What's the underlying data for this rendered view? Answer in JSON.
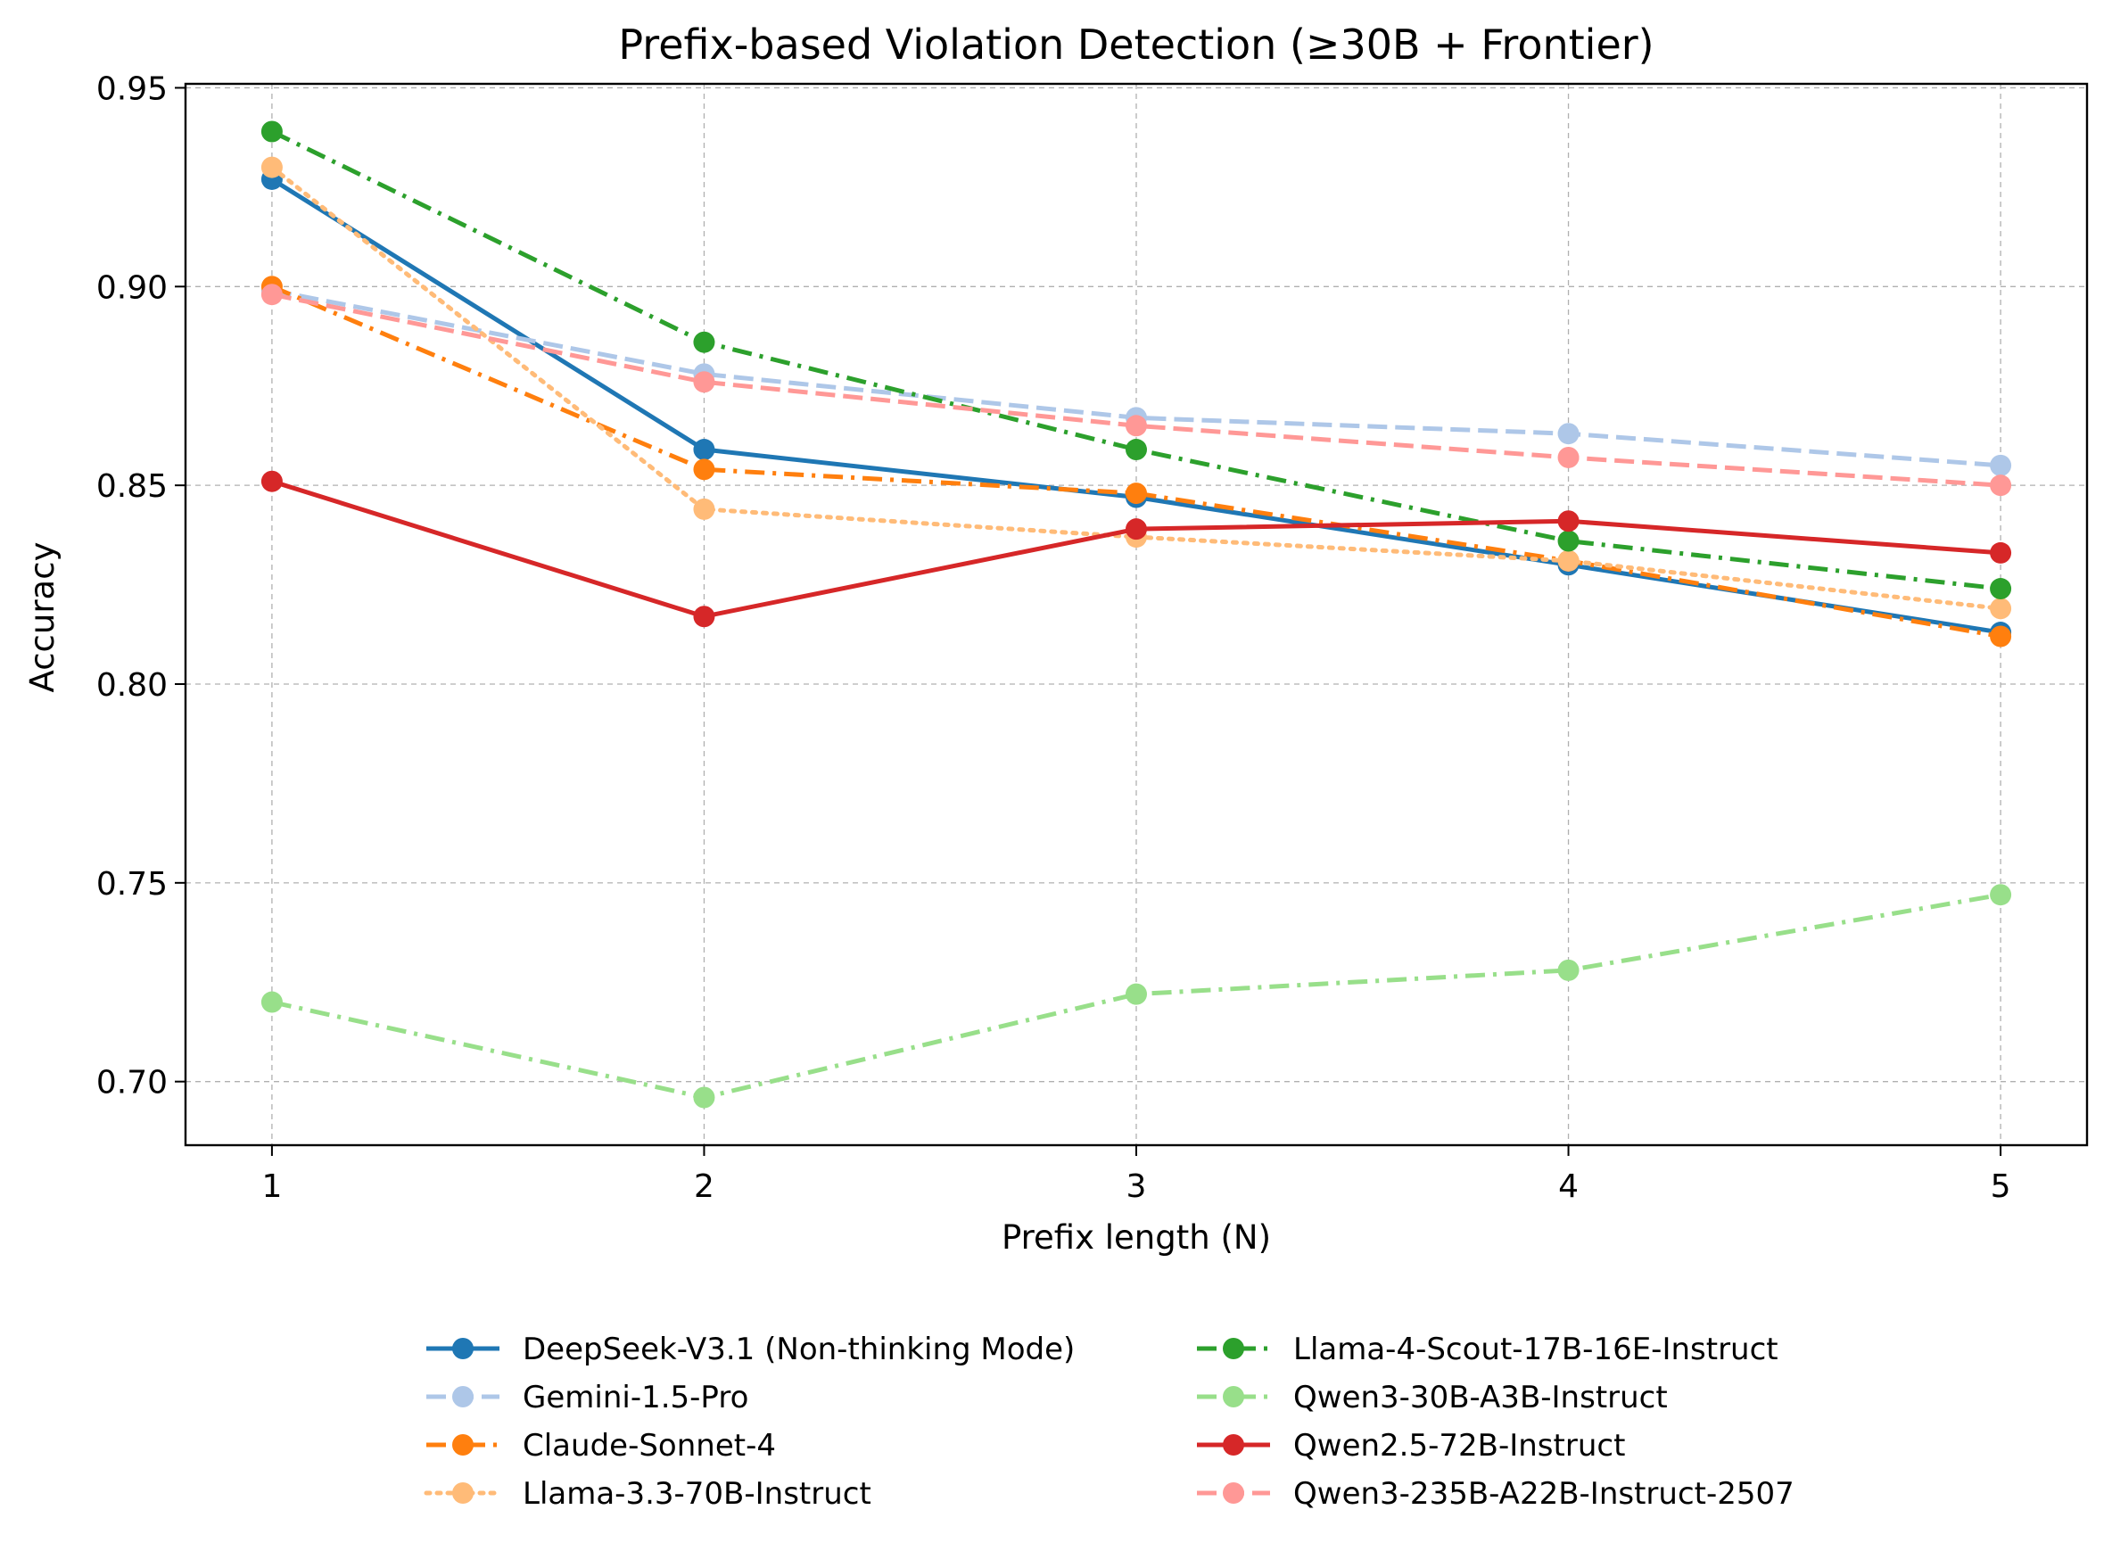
{
  "chart_data": {
    "type": "line",
    "title": "Prefix-based Violation Detection (≥30B + Frontier)",
    "xlabel": "Prefix length (N)",
    "ylabel": "Accuracy",
    "x": [
      1,
      2,
      3,
      4,
      5
    ],
    "x_tick_labels": [
      "1",
      "2",
      "3",
      "4",
      "5"
    ],
    "y_ticks": [
      0.7,
      0.75,
      0.8,
      0.85,
      0.9,
      0.95
    ],
    "y_tick_labels": [
      "0.70",
      "0.75",
      "0.80",
      "0.85",
      "0.90",
      "0.95"
    ],
    "xlim": [
      0.8,
      5.2
    ],
    "ylim": [
      0.684,
      0.951
    ],
    "grid": true,
    "legend_position": "below",
    "series": [
      {
        "name": "DeepSeek-V3.1 (Non-thinking Mode)",
        "values": [
          0.927,
          0.859,
          0.847,
          0.83,
          0.813
        ],
        "color": "#1f77b4",
        "linestyle": "solid"
      },
      {
        "name": "Gemini-1.5-Pro",
        "values": [
          0.899,
          0.878,
          0.867,
          0.863,
          0.855
        ],
        "color": "#aec7e8",
        "linestyle": "dashed"
      },
      {
        "name": "Claude-Sonnet-4",
        "values": [
          0.9,
          0.854,
          0.848,
          0.831,
          0.812
        ],
        "color": "#ff7f0e",
        "linestyle": "dashdot"
      },
      {
        "name": "Llama-3.3-70B-Instruct",
        "values": [
          0.93,
          0.844,
          0.837,
          0.831,
          0.819
        ],
        "color": "#ffbb78",
        "linestyle": "dotted"
      },
      {
        "name": "Llama-4-Scout-17B-16E-Instruct",
        "values": [
          0.939,
          0.886,
          0.859,
          0.836,
          0.824
        ],
        "color": "#2ca02c",
        "linestyle": "dashdot"
      },
      {
        "name": "Qwen3-30B-A3B-Instruct",
        "values": [
          0.72,
          0.696,
          0.722,
          0.728,
          0.747
        ],
        "color": "#98df8a",
        "linestyle": "dashdot"
      },
      {
        "name": "Qwen2.5-72B-Instruct",
        "values": [
          0.851,
          0.817,
          0.839,
          0.841,
          0.833
        ],
        "color": "#d62728",
        "linestyle": "solid"
      },
      {
        "name": "Qwen3-235B-A22B-Instruct-2507",
        "values": [
          0.898,
          0.876,
          0.865,
          0.857,
          0.85
        ],
        "color": "#ff9896",
        "linestyle": "dashed"
      }
    ]
  }
}
